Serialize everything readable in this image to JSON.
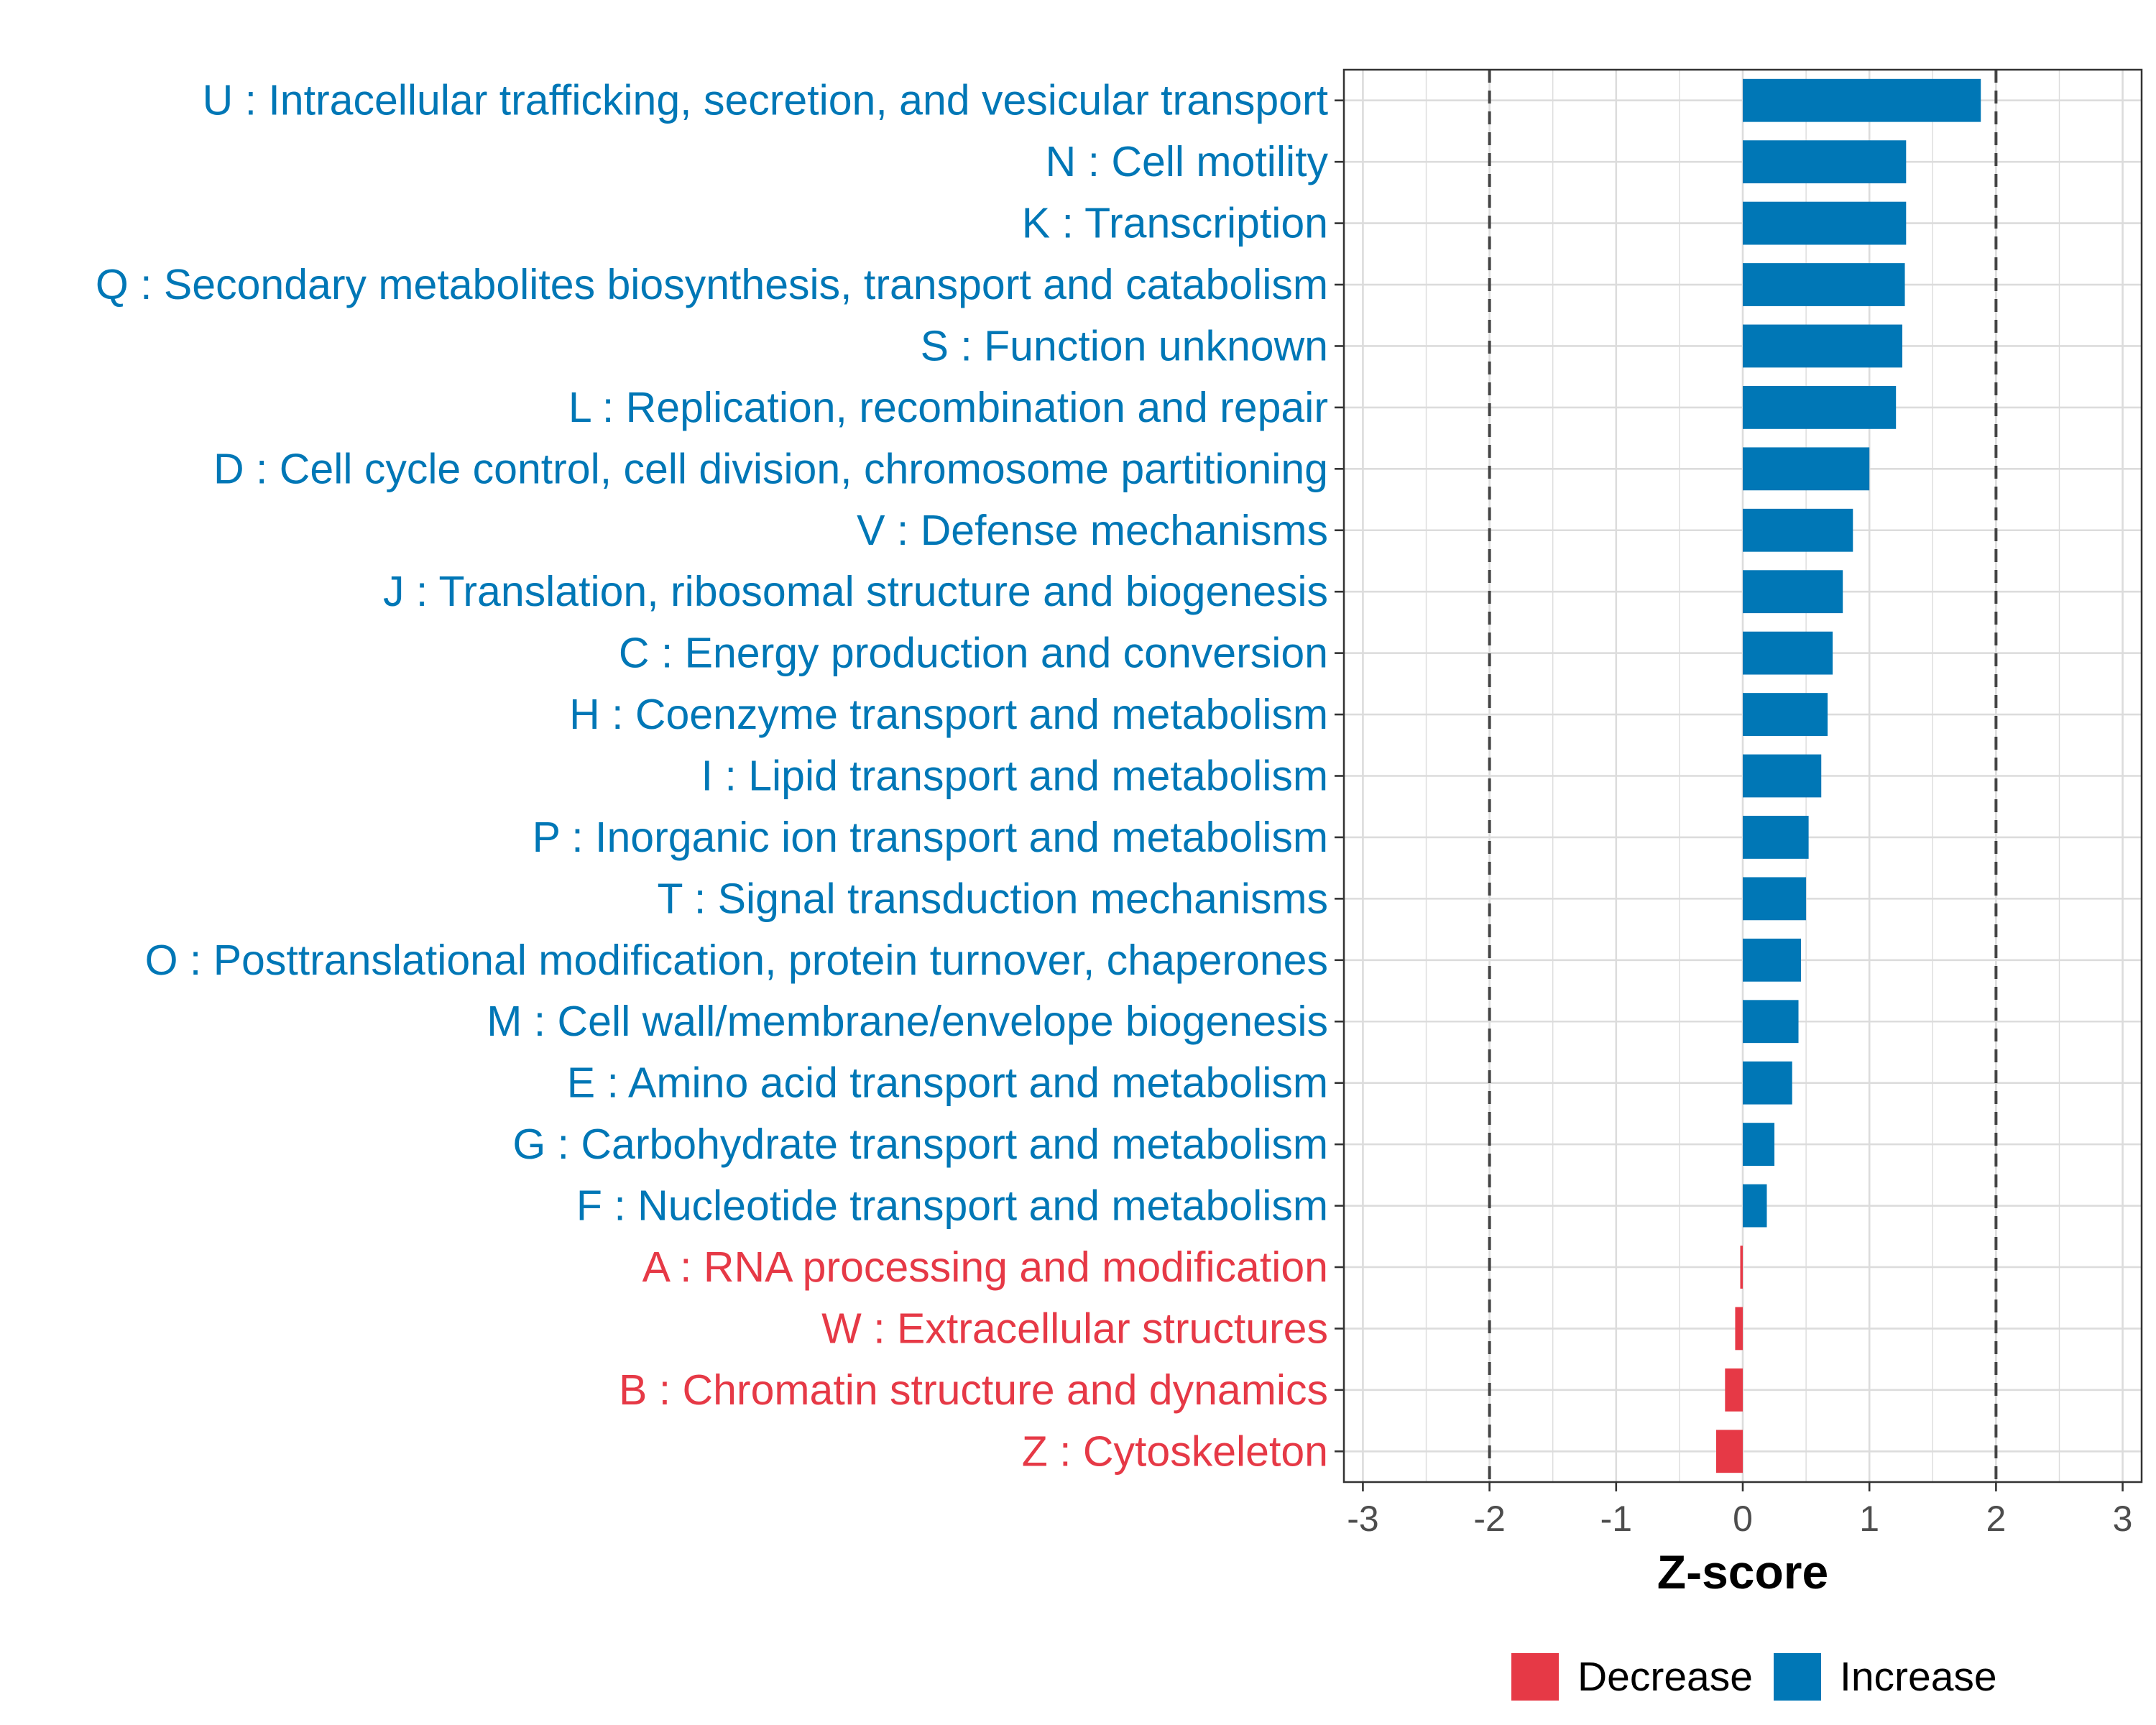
{
  "chart_data": {
    "type": "bar",
    "orientation": "horizontal",
    "xlabel": "Z-score",
    "xlim": [
      -3.15,
      3.15
    ],
    "xticks": [
      -3,
      -2,
      -1,
      0,
      1,
      2,
      3
    ],
    "xtick_labels": [
      "-3",
      "-2",
      "-1",
      "0",
      "1",
      "2",
      "3"
    ],
    "reference_lines": [
      -2,
      2
    ],
    "grid": true,
    "colors": {
      "Decrease": "#e63946",
      "Increase": "#0077b6"
    },
    "categories": [
      "U : Intracellular trafficking, secretion, and vesicular transport",
      "N : Cell motility",
      "K : Transcription",
      "Q : Secondary metabolites biosynthesis, transport and catabolism",
      "S : Function unknown",
      "L : Replication, recombination and repair",
      "D : Cell cycle control, cell division, chromosome partitioning",
      "V : Defense mechanisms",
      "J : Translation, ribosomal structure and biogenesis",
      "C : Energy production and conversion",
      "H : Coenzyme transport and metabolism",
      "I : Lipid transport and metabolism",
      "P : Inorganic ion transport and metabolism",
      "T : Signal transduction mechanisms",
      "O : Posttranslational modification, protein turnover, chaperones",
      "M : Cell wall/membrane/envelope biogenesis",
      "E : Amino acid transport and metabolism",
      "G : Carbohydrate transport and metabolism",
      "F : Nucleotide transport and metabolism",
      "A : RNA processing and modification",
      "W : Extracellular structures",
      "B : Chromatin structure and dynamics",
      "Z : Cytoskeleton"
    ],
    "values": [
      1.88,
      1.29,
      1.29,
      1.28,
      1.26,
      1.21,
      1.0,
      0.87,
      0.79,
      0.71,
      0.67,
      0.62,
      0.52,
      0.5,
      0.46,
      0.44,
      0.39,
      0.25,
      0.19,
      -0.02,
      -0.06,
      -0.14,
      -0.21
    ],
    "groups": [
      "Increase",
      "Increase",
      "Increase",
      "Increase",
      "Increase",
      "Increase",
      "Increase",
      "Increase",
      "Increase",
      "Increase",
      "Increase",
      "Increase",
      "Increase",
      "Increase",
      "Increase",
      "Increase",
      "Increase",
      "Increase",
      "Increase",
      "Decrease",
      "Decrease",
      "Decrease",
      "Decrease"
    ],
    "legend": {
      "position": "bottom",
      "entries": [
        {
          "label": "Decrease",
          "color": "#e63946"
        },
        {
          "label": "Increase",
          "color": "#0077b6"
        }
      ]
    }
  }
}
